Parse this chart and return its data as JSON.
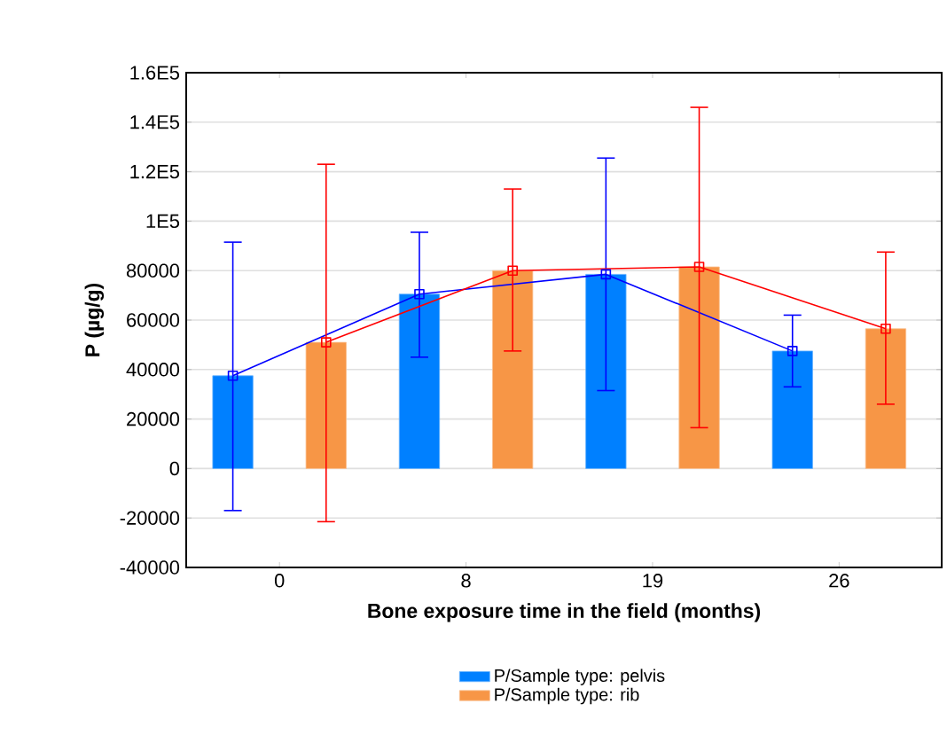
{
  "chart_data": {
    "type": "bar",
    "xlabel": "Bone exposure time in the field (months)",
    "ylabel": "P (µg/g)",
    "categories": [
      "0",
      "8",
      "19",
      "26"
    ],
    "series": [
      {
        "name": "P/Sample type: pelvis",
        "color": "#0080ff",
        "values": [
          37500,
          70500,
          78500,
          47500
        ]
      },
      {
        "name": "P/Sample type: rib",
        "color": "#f79646",
        "values": [
          51000,
          80000,
          81500,
          56500
        ]
      },
      {
        "type": "line",
        "color": "#0000ff",
        "marker": "square",
        "values": [
          37500,
          70500,
          78500,
          47500
        ],
        "errors": [
          [
            -17000,
            91500
          ],
          [
            45000,
            95500
          ],
          [
            31500,
            125500
          ],
          [
            33000,
            62000
          ]
        ]
      },
      {
        "type": "line",
        "color": "#ff0000",
        "marker": "square",
        "values": [
          51000,
          80000,
          81500,
          56500
        ],
        "errors": [
          [
            -21500,
            123000
          ],
          [
            47500,
            113000
          ],
          [
            16500,
            146000
          ],
          [
            26000,
            87500
          ]
        ]
      }
    ],
    "ylim": [
      -40000,
      160000
    ],
    "yticks": [
      -40000,
      -20000,
      0,
      20000,
      40000,
      60000,
      80000,
      {
        "value": 100000,
        "label": "1E5"
      },
      {
        "value": 120000,
        "label": "1.2E5"
      },
      {
        "value": 140000,
        "label": "1.4E5"
      },
      {
        "value": 160000,
        "label": "1.6E5"
      }
    ],
    "grid": "y",
    "legend": "bottom"
  }
}
